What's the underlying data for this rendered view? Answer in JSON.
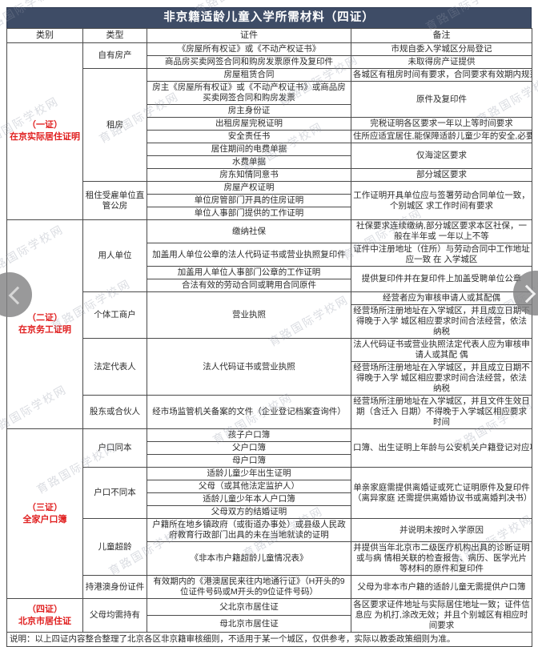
{
  "title": "非京籍适龄儿童入学所需材料（四证）",
  "columns": [
    "类别",
    "类型",
    "证件",
    "备注"
  ],
  "rows": [
    [
      {
        "c": "cat",
        "t": "（一证）\n在京实际居住证明",
        "rs": 13
      },
      {
        "c": "type",
        "t": "自有房产",
        "rs": 2
      },
      {
        "c": "cert",
        "t": "《房屋所有权证》或《不动产权证书》"
      },
      {
        "c": "note",
        "t": "市规自委入学城区分局登记"
      }
    ],
    [
      {
        "c": "cert",
        "t": "商品房买卖网签合同和购房发票原件及复印件"
      },
      {
        "c": "note",
        "t": "未取得房产证提供"
      }
    ],
    [
      {
        "c": "type",
        "t": "租房",
        "rs": 8
      },
      {
        "c": "cert",
        "t": "房屋租赁合同"
      },
      {
        "c": "note",
        "t": "各城区有租房时间有要求，合同要求有效期内规范合法",
        "nw": true
      }
    ],
    [
      {
        "c": "cert",
        "t": "房主《房屋所有权证》或《不动产权证书》或商品房 买卖网签合同和购房发票"
      },
      {
        "c": "note",
        "t": "原件及复印件",
        "rs": 2
      }
    ],
    [
      {
        "c": "cert",
        "t": "房主身份证"
      }
    ],
    [
      {
        "c": "cert",
        "t": "出租房屋完税证明"
      },
      {
        "c": "note",
        "t": "完税证明各区要求一年以上等时间要求"
      }
    ],
    [
      {
        "c": "cert",
        "t": "安全责任书"
      },
      {
        "c": "note",
        "t": "住所应适宜居住,能保障适龄儿童少年的安全,必要时提供",
        "nw": true
      }
    ],
    [
      {
        "c": "cert",
        "t": "居住期间的电费单据"
      },
      {
        "c": "note",
        "t": "仅海淀区要求",
        "rs": 2
      }
    ],
    [
      {
        "c": "cert",
        "t": "水费单据"
      }
    ],
    [
      {
        "c": "cert",
        "t": "房东知情同意书"
      },
      {
        "c": "note",
        "t": "部分城区要求"
      }
    ],
    [
      {
        "c": "type",
        "t": "租住受雇单位直管公房",
        "rs": 3
      },
      {
        "c": "cert",
        "t": "房屋产权证明"
      },
      {
        "c": "note",
        "t": "工作证明开具单位应与签署劳动合同单位一致，个别城区 求工作时间有要求",
        "rs": 3
      }
    ],
    [
      {
        "c": "cert",
        "t": "单位房管部门开具的住房证明"
      }
    ],
    [
      {
        "c": "cert",
        "t": "单位人事部门提供的工作证明"
      }
    ],
    [
      {
        "c": "cat",
        "t": "（二证）\n在京务工证明",
        "rs": 9
      },
      {
        "c": "type",
        "t": "用人单位",
        "rs": 4
      },
      {
        "c": "cert",
        "t": "缴纳社保"
      },
      {
        "c": "note",
        "t": "社保要求连续缴纳,部分城区要求本区社保，一般在半年或 一年以上不等"
      }
    ],
    [
      {
        "c": "cert",
        "t": "加盖用人单位公章的法人代码证书或营业执照复印件"
      },
      {
        "c": "note",
        "t": "证件中注册地址（住所）与劳动合同中工作地址应一致 在 入学城区"
      }
    ],
    [
      {
        "c": "cert",
        "t": "加盖用人单位人事部门公章的工作证明"
      },
      {
        "c": "note",
        "t": "提供复印件并在复印件上加盖受聘单位公章",
        "rs": 2
      }
    ],
    [
      {
        "c": "cert",
        "t": "合法有效的劳动合同或聘用合同原件"
      }
    ],
    [
      {
        "c": "type",
        "t": "个体工商户",
        "rs": 2
      },
      {
        "c": "cert",
        "t": "营业执照",
        "rs": 2
      },
      {
        "c": "note",
        "t": "经营者应为审核申请人或其配偶"
      }
    ],
    [
      {
        "c": "note",
        "t": "经营场所注册地址在入学城区，并且成立日期不得晚于入学 城区相应要求时间合法经营，依法纳税"
      }
    ],
    [
      {
        "c": "type",
        "t": "法定代表人",
        "rs": 2
      },
      {
        "c": "cert",
        "t": "法人代码证书或营业执照",
        "rs": 2
      },
      {
        "c": "note",
        "t": "法人代码证书或营业执照法定代表人应为审核申请人或其配 偶"
      }
    ],
    [
      {
        "c": "note",
        "t": "经营场所注册地址在入学城区，并且成立日期不得晚于入学 城区相应要求时间合法经营，依法纳税"
      }
    ],
    [
      {
        "c": "type",
        "t": "股东或合伙人"
      },
      {
        "c": "cert",
        "t": "经市场监管机关备案的文件（企业登记档案查询件）"
      },
      {
        "c": "note",
        "t": "经营场所注册地址在入学城区，并且文件生效日期（含迁入 日期）不得晚于入学城区相应要求时间"
      }
    ],
    [
      {
        "c": "cat",
        "t": "（三证）\n全家户口簿",
        "rs": 10
      },
      {
        "c": "type",
        "t": "户口同本",
        "rs": 3
      },
      {
        "c": "cert",
        "t": "孩子户口簿"
      },
      {
        "c": "note",
        "t": "口簿、出生证明上年龄与公安机关户籍登记对应项目一致",
        "rs": 3,
        "nw": true
      }
    ],
    [
      {
        "c": "cert",
        "t": "父户口簿"
      }
    ],
    [
      {
        "c": "cert",
        "t": "母户口簿"
      }
    ],
    [
      {
        "c": "type",
        "t": "户口不同本",
        "rs": 4
      },
      {
        "c": "cert",
        "t": "适龄儿童少年出生证明"
      },
      {
        "c": "note",
        "t": "单亲家庭需提供离婚证或死亡证明原件及复印件（离异家庭 还需提供离婚协议书或离婚判决书）",
        "rs": 4
      }
    ],
    [
      {
        "c": "cert",
        "t": "父母（或其他法定监护人）"
      }
    ],
    [
      {
        "c": "cert",
        "t": "适龄儿童少年本人户口簿"
      }
    ],
    [
      {
        "c": "cert",
        "t": "父母双方的结婚证明"
      }
    ],
    [
      {
        "c": "type",
        "t": "儿童超龄",
        "rs": 2
      },
      {
        "c": "cert",
        "t": "户籍所在地乡镇政府（或街道办事处）或县级人民政 府教育行政部门出具的未在当地就读的证明"
      },
      {
        "c": "note",
        "t": "并说明未按时入学原因"
      }
    ],
    [
      {
        "c": "cert",
        "t": "《非本市户籍超龄儿童情况表》"
      },
      {
        "c": "note",
        "t": "并提供当年北京市二级医疗机构出具的诊断证明或与病 情相关联的检查报告、病历、医学光片等材料的原件和复印件"
      }
    ],
    [
      {
        "c": "type",
        "t": "持港澳身份证件"
      },
      {
        "c": "cert",
        "t": "有效期内的《港澳居民来往内地通行证》（H开头的9 位证件号码或M开头的9位证件号码）"
      },
      {
        "c": "note",
        "t": "父母为非本市户籍的适龄儿童无需提供户口簿"
      }
    ],
    [
      {
        "c": "cat",
        "t": "（四证）\n北京市居住证",
        "rs": 2
      },
      {
        "c": "type",
        "t": "父母均需持有",
        "rs": 2
      },
      {
        "c": "cert",
        "t": "父北京市居住证"
      },
      {
        "c": "note",
        "t": "各区要求证件地址与实际居住地址一致；证件信息应 为机打,涂改无效；并且个别城区有相应时间要求",
        "rs": 2
      }
    ],
    [
      {
        "c": "cert",
        "t": "母北京市居住证"
      }
    ]
  ],
  "footer": "说明：以上四证内容整合整理了北京各区非京籍审核细则，不适用于某一个城区，仅供参考，实际以教委政策细则为准。",
  "watermark": "育路国际学校网",
  "icons": {
    "prev": "chevron-left",
    "next": "chevron-right"
  },
  "colors": {
    "header_bg": "#3e4c66",
    "accent_red": "#e01f1f",
    "border": "#4a4a4a",
    "watermark": "#8f96a5"
  }
}
